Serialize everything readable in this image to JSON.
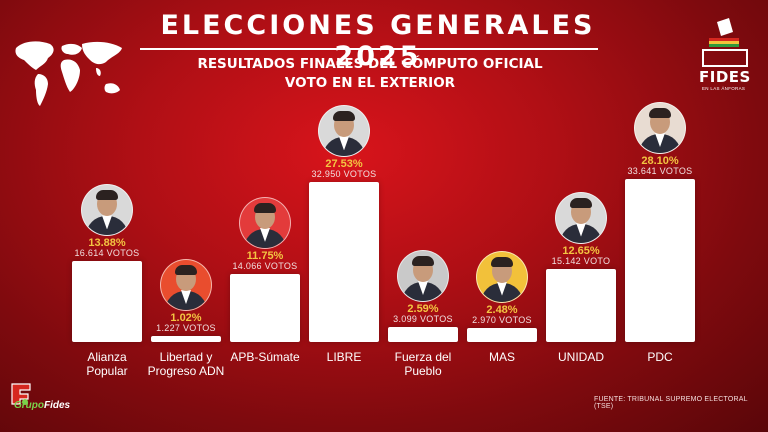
{
  "header": {
    "title": "ELECCIONES GENERALES 2025",
    "subtitle_line1": "RESULTADOS FINALES DEL CÓMPUTO OFICIAL",
    "subtitle_line2": "VOTO EN EL EXTERIOR"
  },
  "brand": {
    "logo_text": "FIDES",
    "logo_tagline": "EN LAS ÁNFORAS",
    "group_logo_text_a": "Grupo",
    "group_logo_text_b": "Fides",
    "accent_color": "#f3c542",
    "background_color": "#b00f15"
  },
  "source": "FUENTE: TRIBUNAL SUPREMO ELECTORAL (TSE)",
  "chart_data": {
    "type": "bar",
    "ylim": [
      0,
      30
    ],
    "unit": "%",
    "categories": [
      "Alianza Popular",
      "Libertad y Progreso ADN",
      "APB-Súmate",
      "LIBRE",
      "Fuerza del Pueblo",
      "MAS",
      "UNIDAD",
      "PDC"
    ],
    "category_lines": [
      [
        "Alianza",
        "Popular"
      ],
      [
        "Libertad y",
        "Progreso ADN"
      ],
      [
        "APB-Súmate"
      ],
      [
        "LIBRE"
      ],
      [
        "Fuerza del",
        "Pueblo"
      ],
      [
        "MAS"
      ],
      [
        "UNIDAD"
      ],
      [
        "PDC"
      ]
    ],
    "values": [
      13.88,
      1.02,
      11.75,
      27.53,
      2.59,
      2.48,
      12.65,
      28.1
    ],
    "value_labels": [
      "13.88%",
      "1.02%",
      "11.75%",
      "27.53%",
      "2.59%",
      "2.48%",
      "12.65%",
      "28.10%"
    ],
    "vote_labels": [
      "16.614 VOTOS",
      "1.227 VOTOS",
      "14.066 VOTOS",
      "32.950 VOTOS",
      "3.099 VOTOS",
      "2.970 VOTOS",
      "15.142 VOTO",
      "33.641 VOTOS"
    ],
    "avatar_backgrounds": [
      "#d9d9d9",
      "#e94d2e",
      "#e33b3b",
      "#d9d9d9",
      "#c9c9c9",
      "#f2c13a",
      "#d9d9d9",
      "#e8dcd2"
    ]
  }
}
